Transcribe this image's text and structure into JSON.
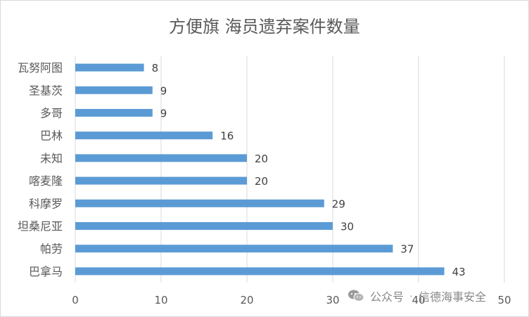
{
  "title": "方便旗 海员遗弃案件数量",
  "watermark": {
    "account_label": "公众号",
    "separator": "·",
    "name": "信德海事安全",
    "icon": "wechat-icon"
  },
  "colors": {
    "bar": "#5B9BD5",
    "grid": "#d9d9d9",
    "axis_text": "#595959",
    "label_text": "#404040"
  },
  "chart_data": {
    "type": "bar",
    "orientation": "horizontal",
    "title": "方便旗 海员遗弃案件数量",
    "categories": [
      "瓦努阿图",
      "圣基茨",
      "多哥",
      "巴林",
      "未知",
      "喀麦隆",
      "科摩罗",
      "坦桑尼亚",
      "帕劳",
      "巴拿马"
    ],
    "values": [
      8,
      9,
      9,
      16,
      20,
      20,
      29,
      30,
      37,
      43
    ],
    "xlim": [
      0,
      50
    ],
    "xticks": [
      0,
      10,
      20,
      30,
      40,
      50
    ],
    "xlabel": "",
    "ylabel": "",
    "grid": true,
    "data_labels": true,
    "legend": false
  }
}
